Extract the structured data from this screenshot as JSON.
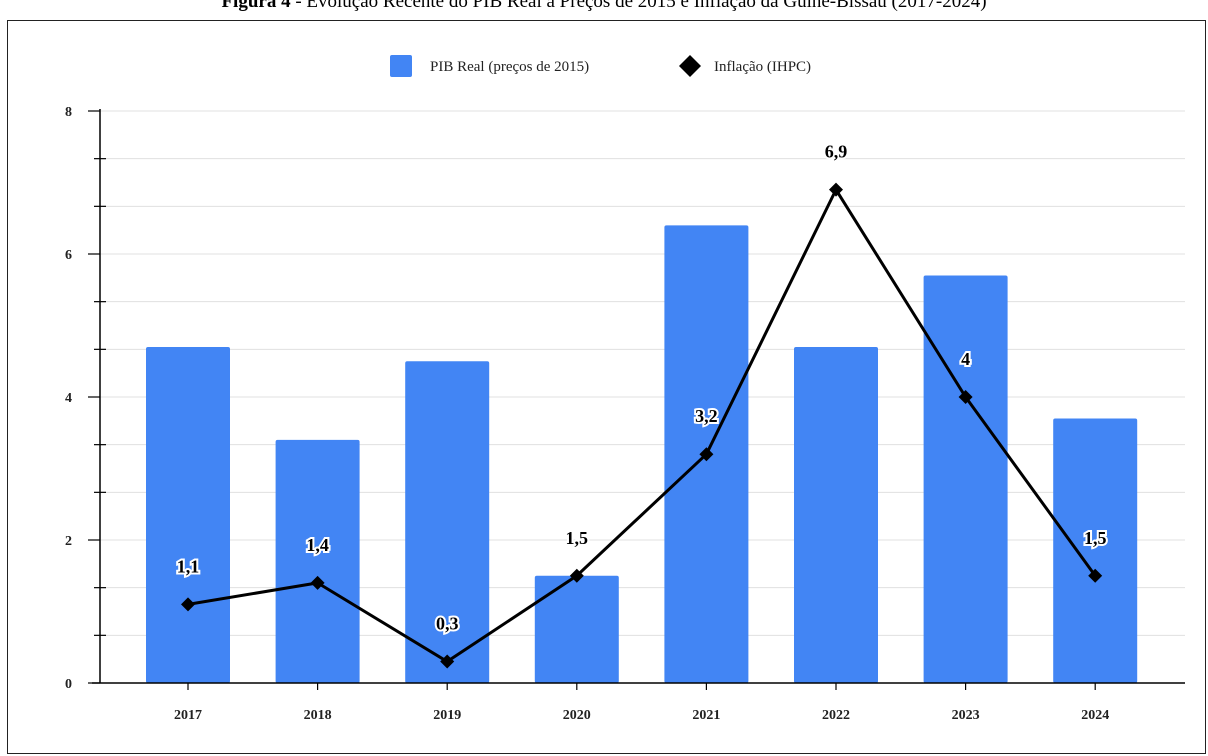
{
  "figure": {
    "title_bold": "Figura 4",
    "title_rest": " - Evolução Recente do PIB Real a Preços de 2015  e Inflação da Guiné-Bissau (2017-2024)"
  },
  "colors": {
    "bar": "#4285f4",
    "line": "#000000",
    "grid": "#e0e0e0",
    "axis": "#000000"
  },
  "chart_data": {
    "type": "bar",
    "categories": [
      "2017",
      "2018",
      "2019",
      "2020",
      "2021",
      "2022",
      "2023",
      "2024"
    ],
    "series": [
      {
        "name": "PIB Real (preços de 2015)",
        "type": "bar",
        "values": [
          4.7,
          3.4,
          4.5,
          1.5,
          6.4,
          4.7,
          5.7,
          3.7
        ]
      },
      {
        "name": "Inflação (IHPC)",
        "type": "line",
        "marker": "diamond",
        "values": [
          1.1,
          1.4,
          0.3,
          1.5,
          3.2,
          6.9,
          4.0,
          1.5
        ]
      }
    ],
    "data_labels": [
      "1,1",
      "1,4",
      "0,3",
      "1,5",
      "3,2",
      "6,9",
      "4",
      "1,5"
    ],
    "yticks": [
      "0",
      "2",
      "4",
      "6",
      "8"
    ],
    "ylim": [
      0,
      8
    ],
    "legend_position": "top",
    "grid": true
  }
}
